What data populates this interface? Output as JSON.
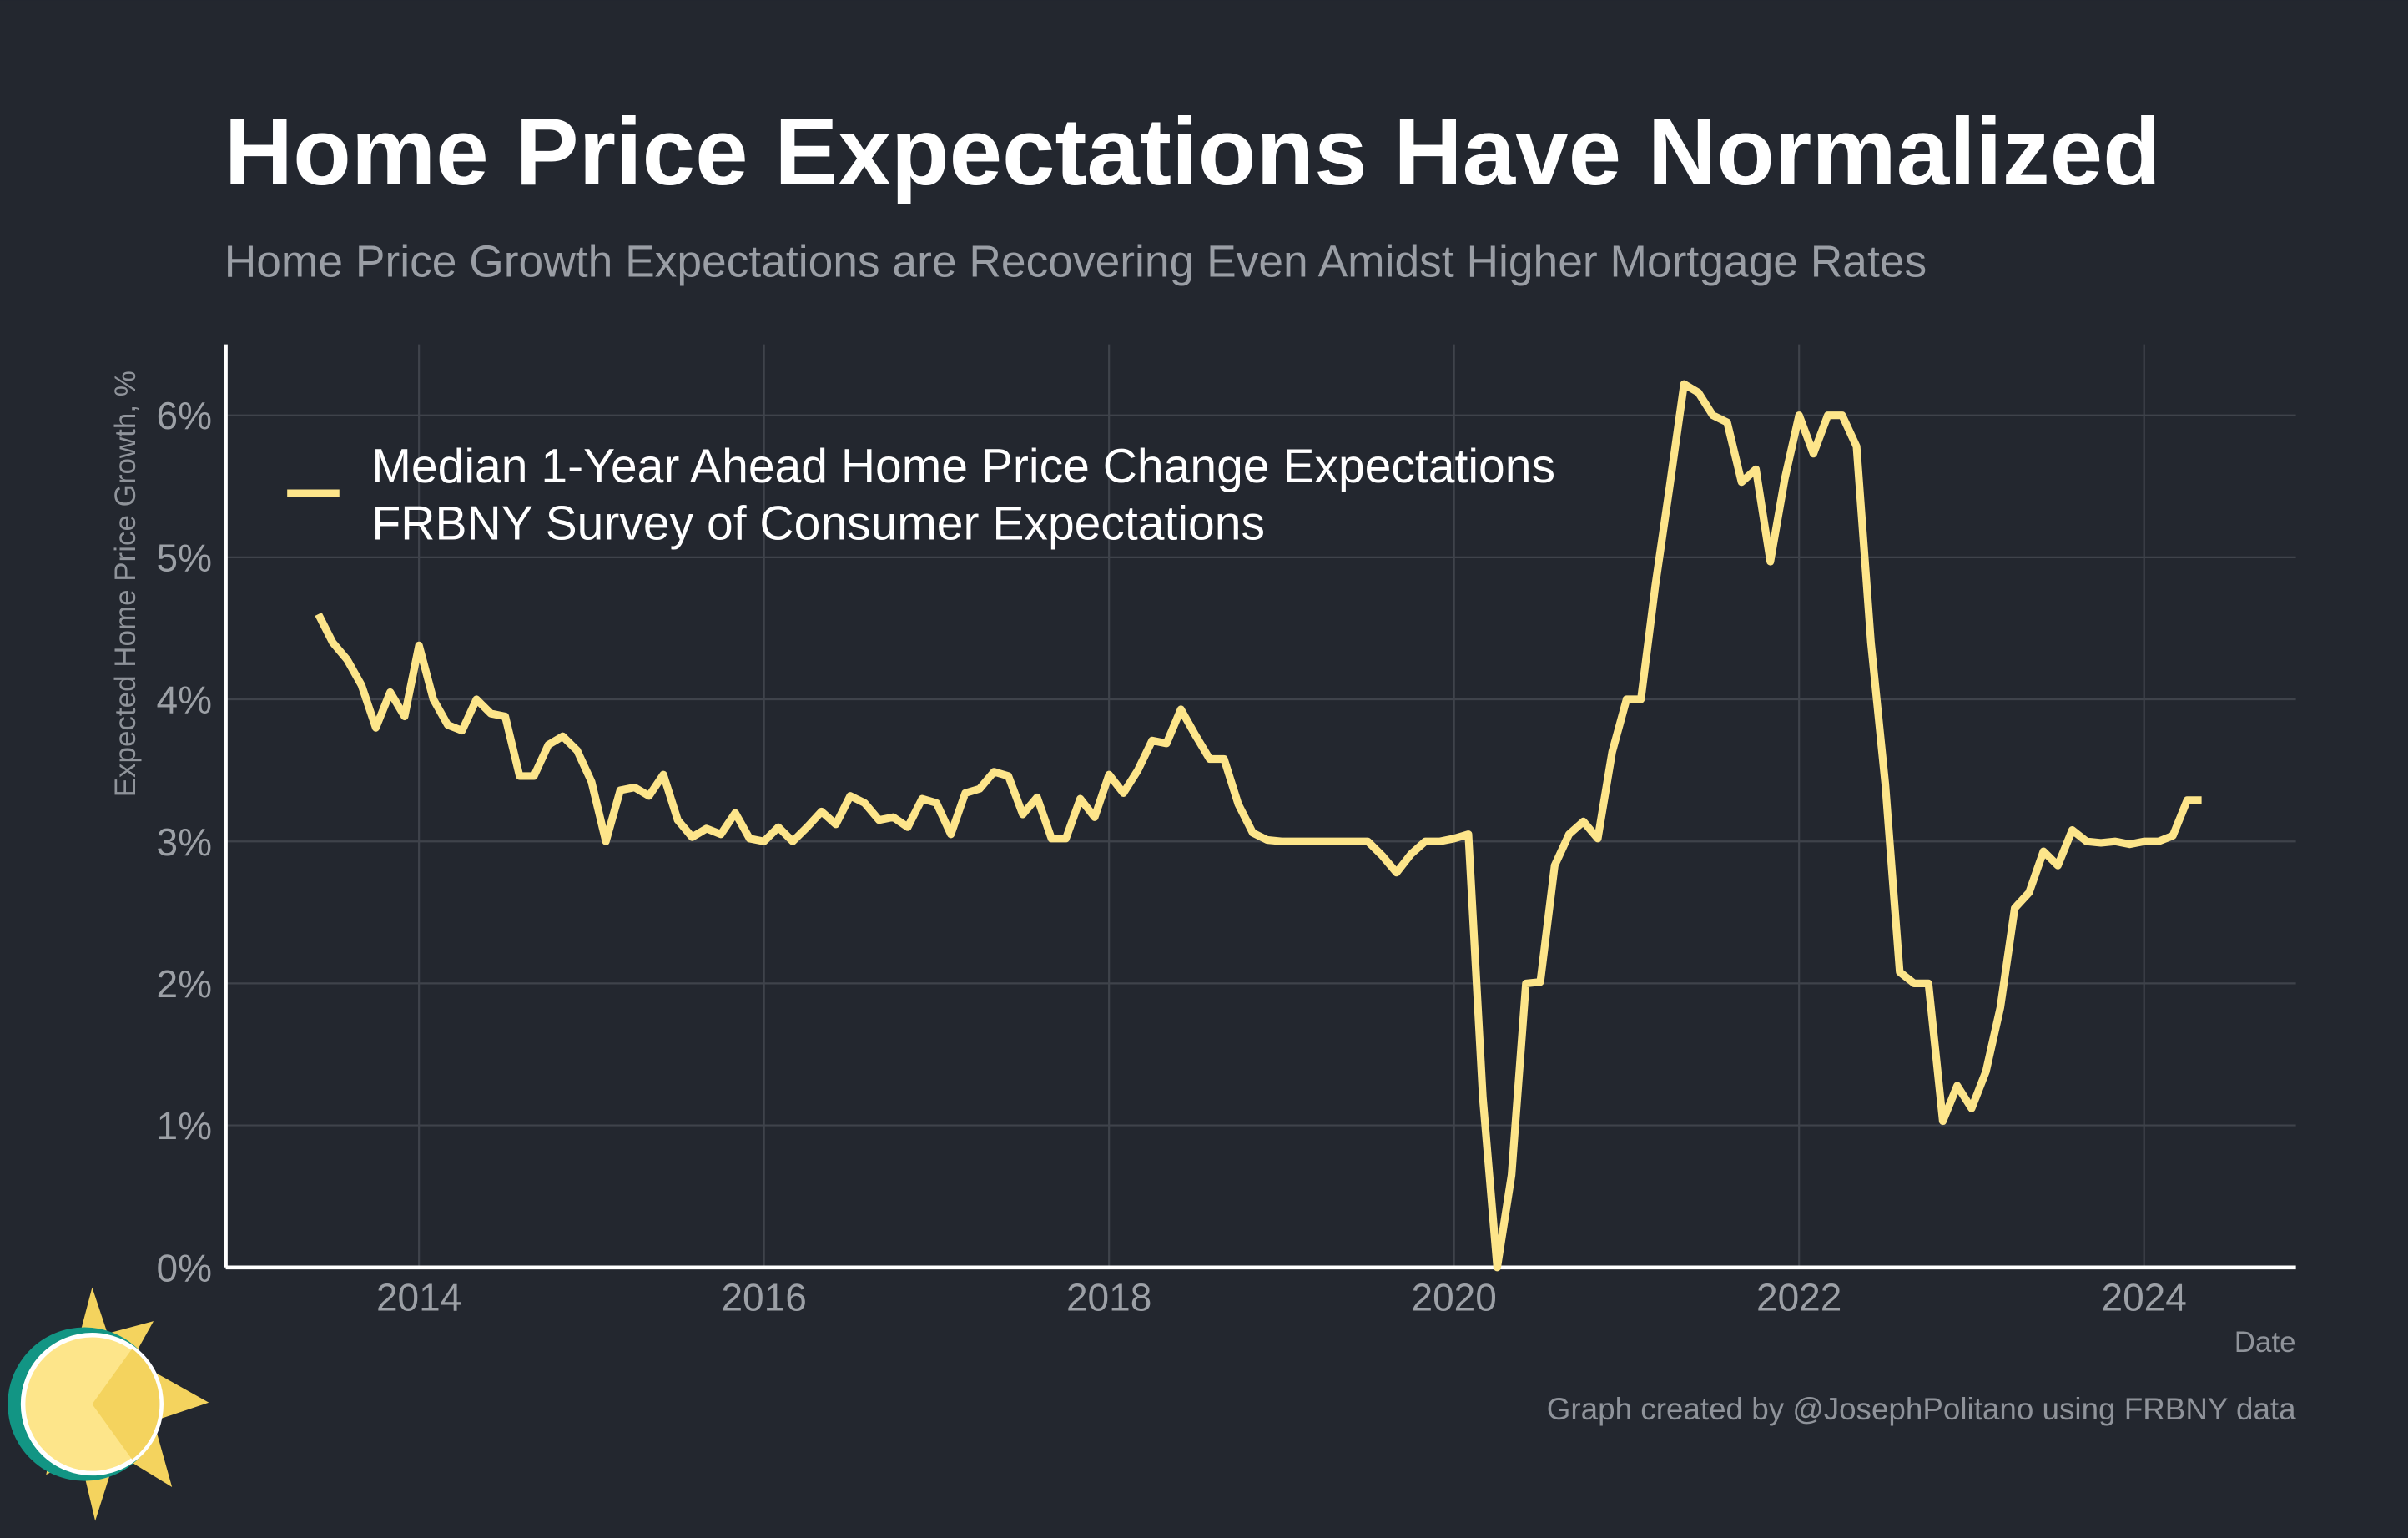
{
  "chart_data": {
    "type": "line",
    "title": "Home Price Expectations Have Normalized",
    "subtitle": "Home Price Growth Expectations are Recovering Even Amidst Higher Mortgage Rates",
    "y_label": "Expected Home Price Growth, %",
    "x_label": "Date",
    "caption": "Graph created by @JosephPolitano using FRBNY data",
    "legend_note": "FRBNY Survey of Consumer Expectations",
    "grid": true,
    "xlim": [
      2012.88,
      2024.88
    ],
    "xticks": [
      2014,
      2016,
      2018,
      2020,
      2022,
      2024
    ],
    "ylim": [
      0,
      6.5
    ],
    "yticks": [
      {
        "value": 0,
        "label": "0%"
      },
      {
        "value": 1,
        "label": "1%"
      },
      {
        "value": 2,
        "label": "2%"
      },
      {
        "value": 3,
        "label": "3%"
      },
      {
        "value": 4,
        "label": "4%"
      },
      {
        "value": 5,
        "label": "5%"
      },
      {
        "value": 6,
        "label": "6%"
      }
    ],
    "x": [
      "2013-06",
      "2013-07",
      "2013-08",
      "2013-09",
      "2013-10",
      "2013-11",
      "2013-12",
      "2014-01",
      "2014-02",
      "2014-03",
      "2014-04",
      "2014-05",
      "2014-06",
      "2014-07",
      "2014-08",
      "2014-09",
      "2014-10",
      "2014-11",
      "2014-12",
      "2015-01",
      "2015-02",
      "2015-03",
      "2015-04",
      "2015-05",
      "2015-06",
      "2015-07",
      "2015-08",
      "2015-09",
      "2015-10",
      "2015-11",
      "2015-12",
      "2016-01",
      "2016-02",
      "2016-03",
      "2016-04",
      "2016-05",
      "2016-06",
      "2016-07",
      "2016-08",
      "2016-09",
      "2016-10",
      "2016-11",
      "2016-12",
      "2017-01",
      "2017-02",
      "2017-03",
      "2017-04",
      "2017-05",
      "2017-06",
      "2017-07",
      "2017-08",
      "2017-09",
      "2017-10",
      "2017-11",
      "2017-12",
      "2018-01",
      "2018-02",
      "2018-03",
      "2018-04",
      "2018-05",
      "2018-06",
      "2018-07",
      "2018-08",
      "2018-09",
      "2018-10",
      "2018-11",
      "2018-12",
      "2019-01",
      "2019-02",
      "2019-03",
      "2019-04",
      "2019-05",
      "2019-06",
      "2019-07",
      "2019-08",
      "2019-09",
      "2019-10",
      "2019-11",
      "2019-12",
      "2020-01",
      "2020-02",
      "2020-03",
      "2020-04",
      "2020-05",
      "2020-06",
      "2020-07",
      "2020-08",
      "2020-09",
      "2020-10",
      "2020-11",
      "2020-12",
      "2021-01",
      "2021-02",
      "2021-03",
      "2021-04",
      "2021-05",
      "2021-06",
      "2021-07",
      "2021-08",
      "2021-09",
      "2021-10",
      "2021-11",
      "2021-12",
      "2022-01",
      "2022-02",
      "2022-03",
      "2022-04",
      "2022-05",
      "2022-06",
      "2022-07",
      "2022-08",
      "2022-09",
      "2022-10",
      "2022-11",
      "2022-12",
      "2023-01",
      "2023-02",
      "2023-03",
      "2023-04",
      "2023-05",
      "2023-06",
      "2023-07",
      "2023-08",
      "2023-09",
      "2023-10",
      "2023-11",
      "2023-12",
      "2024-01",
      "2024-02",
      "2024-03",
      "2024-04",
      "2024-05"
    ],
    "series": [
      {
        "name": "Median 1-Year Ahead Home Price Change Expectations",
        "color": "#fde58a",
        "values": [
          4.6,
          4.4,
          4.28,
          4.1,
          3.8,
          4.05,
          3.88,
          4.38,
          4.0,
          3.82,
          3.78,
          4.0,
          3.9,
          3.88,
          3.46,
          3.46,
          3.68,
          3.74,
          3.64,
          3.42,
          3.0,
          3.36,
          3.38,
          3.32,
          3.47,
          3.15,
          3.03,
          3.09,
          3.05,
          3.2,
          3.02,
          3.0,
          3.1,
          3.0,
          3.1,
          3.21,
          3.12,
          3.32,
          3.27,
          3.15,
          3.17,
          3.1,
          3.3,
          3.27,
          3.05,
          3.34,
          3.37,
          3.49,
          3.46,
          3.19,
          3.31,
          3.02,
          3.02,
          3.3,
          3.17,
          3.47,
          3.34,
          3.5,
          3.71,
          3.69,
          3.93,
          3.75,
          3.58,
          3.58,
          3.26,
          3.06,
          3.01,
          3.0,
          3.0,
          3.0,
          3.0,
          3.0,
          3.0,
          3.0,
          2.9,
          2.78,
          2.91,
          3.0,
          3.0,
          3.02,
          3.05,
          1.2,
          0.0,
          0.65,
          2.0,
          2.01,
          2.83,
          3.05,
          3.14,
          3.02,
          3.63,
          4.0,
          4.0,
          4.8,
          5.5,
          6.22,
          6.16,
          6.0,
          5.95,
          5.53,
          5.62,
          4.97,
          5.55,
          6.0,
          5.73,
          6.0,
          6.0,
          5.78,
          4.4,
          3.4,
          2.08,
          2.0,
          2.0,
          1.03,
          1.28,
          1.12,
          1.38,
          1.83,
          2.53,
          2.64,
          2.93,
          2.83,
          3.08,
          3.0,
          2.99,
          3.0,
          2.98,
          3.0,
          3.0,
          3.04,
          3.29,
          3.29
        ]
      }
    ]
  }
}
